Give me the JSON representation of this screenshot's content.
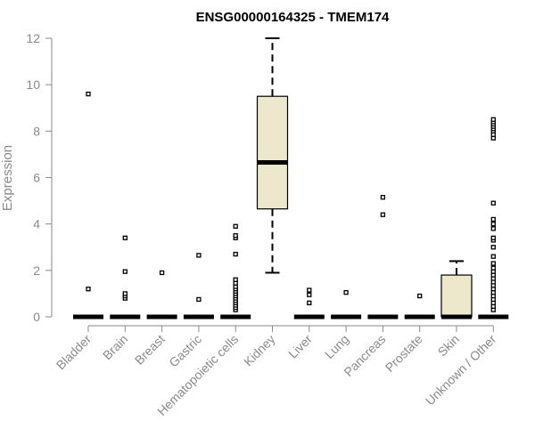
{
  "chart_data": {
    "type": "boxplot",
    "title": "ENSG00000164325 - TMEM174",
    "xlabel": "",
    "ylabel": "Expression",
    "ylim": [
      0,
      12
    ],
    "yticks": [
      0,
      2,
      4,
      6,
      8,
      10,
      12
    ],
    "grid": false,
    "legend": "none",
    "box_fill": "#ede7cc",
    "categories": [
      "Bladder",
      "Brain",
      "Breast",
      "Gastric",
      "Hematopoietic cells",
      "Kidney",
      "Liver",
      "Lung",
      "Pancreas",
      "Prostate",
      "Skin",
      "Unknown / Other"
    ],
    "boxes": [
      {
        "category": "Bladder",
        "q1": 0,
        "median": 0,
        "q3": 0,
        "whisker_low": 0,
        "whisker_high": 0,
        "outliers": [
          1.2,
          9.6
        ]
      },
      {
        "category": "Brain",
        "q1": 0,
        "median": 0,
        "q3": 0,
        "whisker_low": 0,
        "whisker_high": 0,
        "outliers": [
          0.8,
          0.9,
          1.0,
          1.95,
          3.4
        ]
      },
      {
        "category": "Breast",
        "q1": 0,
        "median": 0,
        "q3": 0,
        "whisker_low": 0,
        "whisker_high": 0,
        "outliers": [
          1.9
        ]
      },
      {
        "category": "Gastric",
        "q1": 0,
        "median": 0,
        "q3": 0,
        "whisker_low": 0,
        "whisker_high": 0,
        "outliers": [
          0.75,
          2.65
        ]
      },
      {
        "category": "Hematopoietic cells",
        "q1": 0,
        "median": 0,
        "q3": 0,
        "whisker_low": 0,
        "whisker_high": 0,
        "outliers": [
          0.3,
          0.4,
          0.5,
          0.6,
          0.7,
          0.8,
          0.9,
          1.0,
          1.1,
          1.2,
          1.3,
          1.45,
          1.6,
          2.7,
          3.4,
          3.5,
          3.9
        ]
      },
      {
        "category": "Kidney",
        "q1": 4.65,
        "median": 6.65,
        "q3": 9.5,
        "whisker_low": 1.9,
        "whisker_high": 12.0,
        "outliers": []
      },
      {
        "category": "Liver",
        "q1": 0,
        "median": 0,
        "q3": 0,
        "whisker_low": 0,
        "whisker_high": 0,
        "outliers": [
          0.6,
          0.95,
          1.15
        ]
      },
      {
        "category": "Lung",
        "q1": 0,
        "median": 0,
        "q3": 0,
        "whisker_low": 0,
        "whisker_high": 0,
        "outliers": [
          1.05
        ]
      },
      {
        "category": "Pancreas",
        "q1": 0,
        "median": 0,
        "q3": 0,
        "whisker_low": 0,
        "whisker_high": 0,
        "outliers": [
          4.4,
          5.15
        ]
      },
      {
        "category": "Prostate",
        "q1": 0,
        "median": 0,
        "q3": 0,
        "whisker_low": 0,
        "whisker_high": 0,
        "outliers": [
          0.9
        ]
      },
      {
        "category": "Skin",
        "q1": 0,
        "median": 0,
        "q3": 1.8,
        "whisker_low": 0,
        "whisker_high": 2.4,
        "outliers": []
      },
      {
        "category": "Unknown / Other",
        "q1": 0,
        "median": 0,
        "q3": 0,
        "whisker_low": 0,
        "whisker_high": 0,
        "outliers": [
          0.3,
          0.45,
          0.6,
          0.75,
          0.9,
          1.05,
          1.2,
          1.35,
          1.5,
          1.65,
          1.8,
          1.95,
          2.1,
          2.3,
          2.6,
          3.0,
          3.3,
          3.4,
          3.8,
          4.0,
          4.2,
          4.9,
          7.7,
          7.85,
          8.0,
          8.1,
          8.2,
          8.3,
          8.4,
          8.5
        ]
      }
    ]
  }
}
